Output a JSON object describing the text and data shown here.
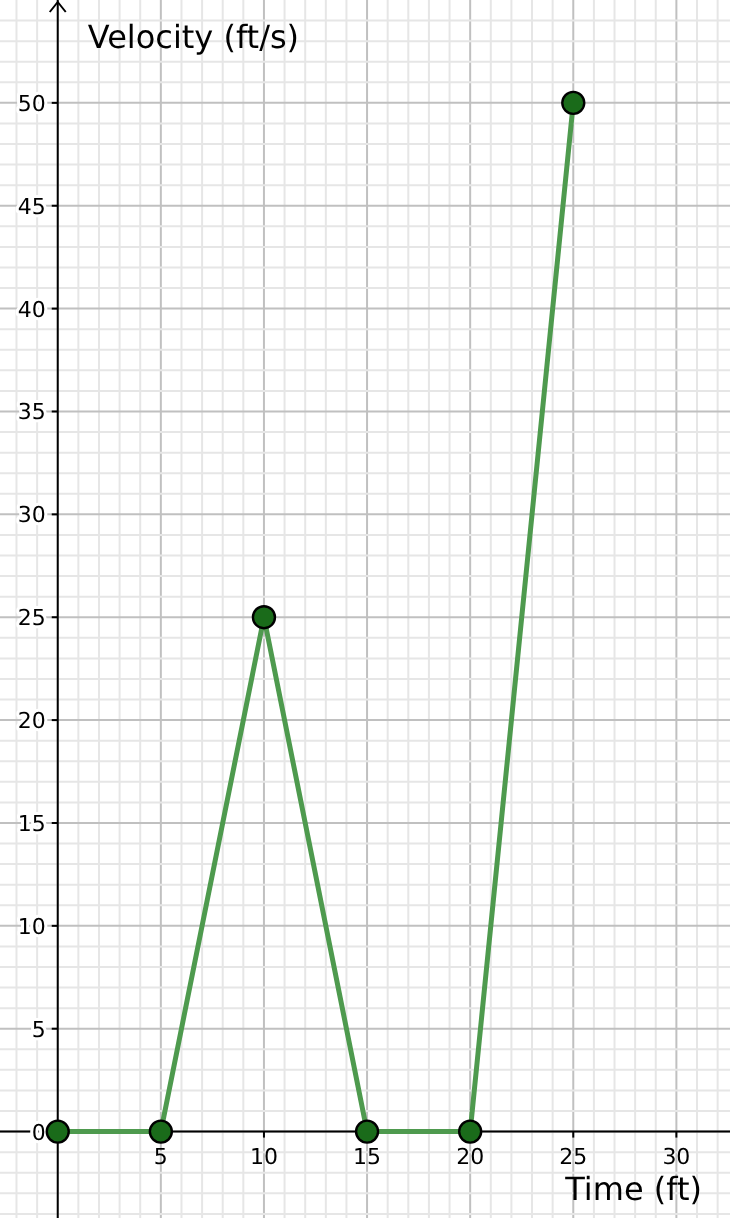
{
  "chart_data": {
    "type": "line",
    "xlabel": "Time (ft)",
    "ylabel": "Velocity (ft/s)",
    "x": [
      0,
      5,
      10,
      15,
      20,
      25
    ],
    "series": [
      {
        "color": "#4e9a4e",
        "values": [
          0,
          0,
          25,
          0,
          0,
          50
        ]
      }
    ],
    "marker": "circle",
    "line_style": "solid",
    "grid": true,
    "xlim": [
      -2.8,
      32.6
    ],
    "ylim": [
      -4.2,
      55
    ],
    "xticks": [
      {
        "value": -2,
        "label": null
      },
      {
        "value": -1,
        "label": null
      },
      {
        "value": 0,
        "label": null
      },
      {
        "value": 1,
        "label": null
      },
      {
        "value": 2,
        "label": null
      },
      {
        "value": 3,
        "label": null
      },
      {
        "value": 4,
        "label": null
      },
      5,
      {
        "value": 6,
        "label": null
      },
      {
        "value": 7,
        "label": null
      },
      {
        "value": 8,
        "label": null
      },
      {
        "value": 9,
        "label": null
      },
      10,
      {
        "value": 11,
        "label": null
      },
      {
        "value": 12,
        "label": null
      },
      {
        "value": 13,
        "label": null
      },
      {
        "value": 14,
        "label": null
      },
      15,
      {
        "value": 16,
        "label": null
      },
      {
        "value": 17,
        "label": null
      },
      {
        "value": 18,
        "label": null
      },
      {
        "value": 19,
        "label": null
      },
      20,
      {
        "value": 21,
        "label": null
      },
      {
        "value": 22,
        "label": null
      },
      {
        "value": 23,
        "label": null
      },
      {
        "value": 24,
        "label": null
      },
      25,
      {
        "value": 26,
        "label": null
      },
      {
        "value": 27,
        "label": null
      },
      {
        "value": 28,
        "label": null
      },
      {
        "value": 29,
        "label": null
      },
      30,
      {
        "value": 31,
        "label": null
      },
      {
        "value": 32,
        "label": null
      }
    ],
    "yticks": [
      {
        "value": -4,
        "label": null
      },
      {
        "value": -3,
        "label": null
      },
      {
        "value": -2,
        "label": null
      },
      {
        "value": -1,
        "label": null
      },
      0,
      {
        "value": 1,
        "label": null
      },
      {
        "value": 2,
        "label": null
      },
      {
        "value": 3,
        "label": null
      },
      {
        "value": 4,
        "label": null
      },
      5,
      {
        "value": 6,
        "label": null
      },
      {
        "value": 7,
        "label": null
      },
      {
        "value": 8,
        "label": null
      },
      {
        "value": 9,
        "label": null
      },
      10,
      {
        "value": 11,
        "label": null
      },
      {
        "value": 12,
        "label": null
      },
      {
        "value": 13,
        "label": null
      },
      {
        "value": 14,
        "label": null
      },
      15,
      {
        "value": 16,
        "label": null
      },
      {
        "value": 17,
        "label": null
      },
      {
        "value": 18,
        "label": null
      },
      {
        "value": 19,
        "label": null
      },
      20,
      {
        "value": 21,
        "label": null
      },
      {
        "value": 22,
        "label": null
      },
      {
        "value": 23,
        "label": null
      },
      {
        "value": 24,
        "label": null
      },
      25,
      {
        "value": 26,
        "label": null
      },
      {
        "value": 27,
        "label": null
      },
      {
        "value": 28,
        "label": null
      },
      {
        "value": 29,
        "label": null
      },
      30,
      {
        "value": 31,
        "label": null
      },
      {
        "value": 32,
        "label": null
      },
      {
        "value": 33,
        "label": null
      },
      {
        "value": 34,
        "label": null
      },
      35,
      {
        "value": 36,
        "label": null
      },
      {
        "value": 37,
        "label": null
      },
      {
        "value": 38,
        "label": null
      },
      {
        "value": 39,
        "label": null
      },
      40,
      {
        "value": 41,
        "label": null
      },
      {
        "value": 42,
        "label": null
      },
      {
        "value": 43,
        "label": null
      },
      {
        "value": 44,
        "label": null
      },
      45,
      {
        "value": 46,
        "label": null
      },
      {
        "value": 47,
        "label": null
      },
      {
        "value": 48,
        "label": null
      },
      {
        "value": 49,
        "label": null
      },
      50,
      {
        "value": 51,
        "label": null
      },
      {
        "value": 52,
        "label": null
      },
      {
        "value": 53,
        "label": null
      },
      {
        "value": 54,
        "label": null
      }
    ]
  }
}
